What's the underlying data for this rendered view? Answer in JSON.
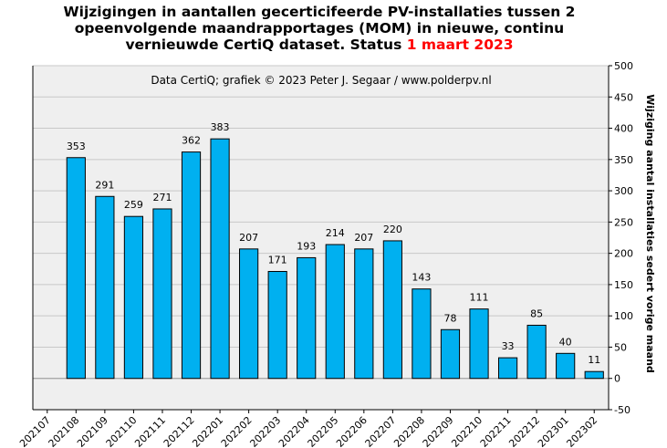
{
  "title": {
    "line1": "Wijzigingen  in aantallen gecerticifeerde PV-installaties  tussen 2",
    "line2": "opeenvolgende maandrapportages (MOM) in nieuwe, continu",
    "line3": "vernieuwde CertiQ dataset. Status ",
    "date": "1 maart 2023"
  },
  "chart_data": {
    "type": "bar",
    "annotation": "Data CertiQ; grafiek © 2023 Peter J. Segaar / www.polderpv.nl",
    "ylabel": "Wijziging aantal installaties sedert vorige maand",
    "ylim": [
      -50,
      500
    ],
    "ytick_step": 50,
    "grid": true,
    "categories": [
      "202107",
      "202108",
      "202109",
      "202110",
      "202111",
      "202112",
      "202201",
      "202202",
      "202203",
      "202204",
      "202205",
      "202206",
      "202207",
      "202208",
      "202209",
      "202210",
      "202211",
      "202212",
      "202301",
      "202302"
    ],
    "values": [
      null,
      353,
      291,
      259,
      271,
      362,
      383,
      207,
      171,
      193,
      214,
      207,
      220,
      143,
      78,
      111,
      33,
      85,
      40,
      11
    ],
    "bar_color": "#00b0f0",
    "title_date_color": "#ff0000"
  }
}
